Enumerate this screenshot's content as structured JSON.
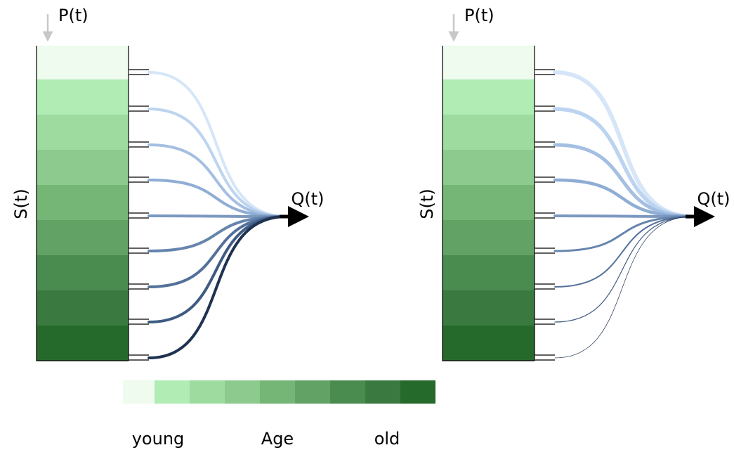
{
  "panels": [
    {
      "input": "P(t)",
      "storage": "S(t)",
      "output": "Q(t)"
    },
    {
      "input": "P(t)",
      "storage": "S(t)",
      "output": "Q(t)"
    }
  ],
  "legend": {
    "left": "young",
    "middle": "Age",
    "right": "old"
  }
}
